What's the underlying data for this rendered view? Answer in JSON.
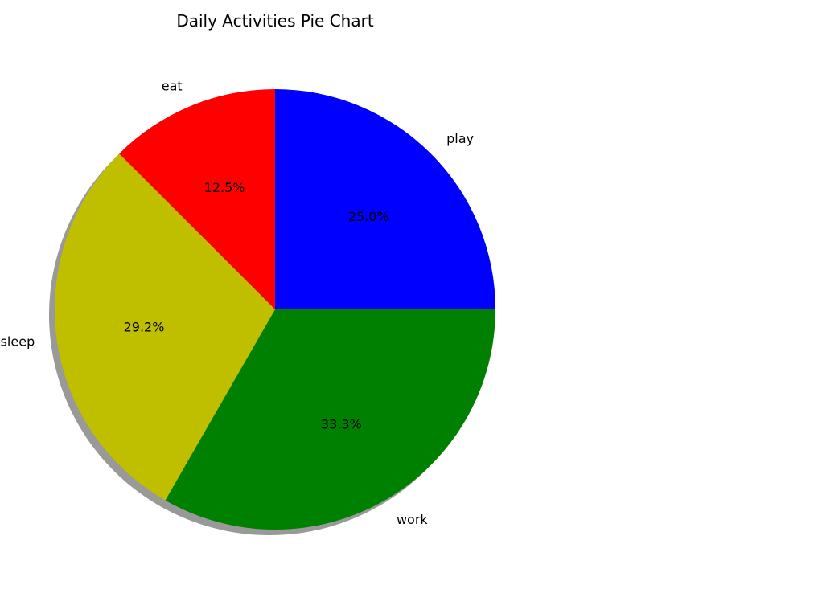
{
  "chart_data": {
    "type": "pie",
    "title": "Daily Activities Pie Chart",
    "start_angle_deg": 90,
    "counterclockwise": false,
    "shadow": true,
    "slices": [
      {
        "label": "play",
        "value": 25.0,
        "pct_label": "25.0%",
        "color": "#0000ff"
      },
      {
        "label": "work",
        "value": 33.3,
        "pct_label": "33.3%",
        "color": "#008000"
      },
      {
        "label": "sleep",
        "value": 29.2,
        "pct_label": "29.2%",
        "color": "#bfbf00"
      },
      {
        "label": "eat",
        "value": 12.5,
        "pct_label": "12.5%",
        "color": "#ff0000"
      }
    ]
  }
}
